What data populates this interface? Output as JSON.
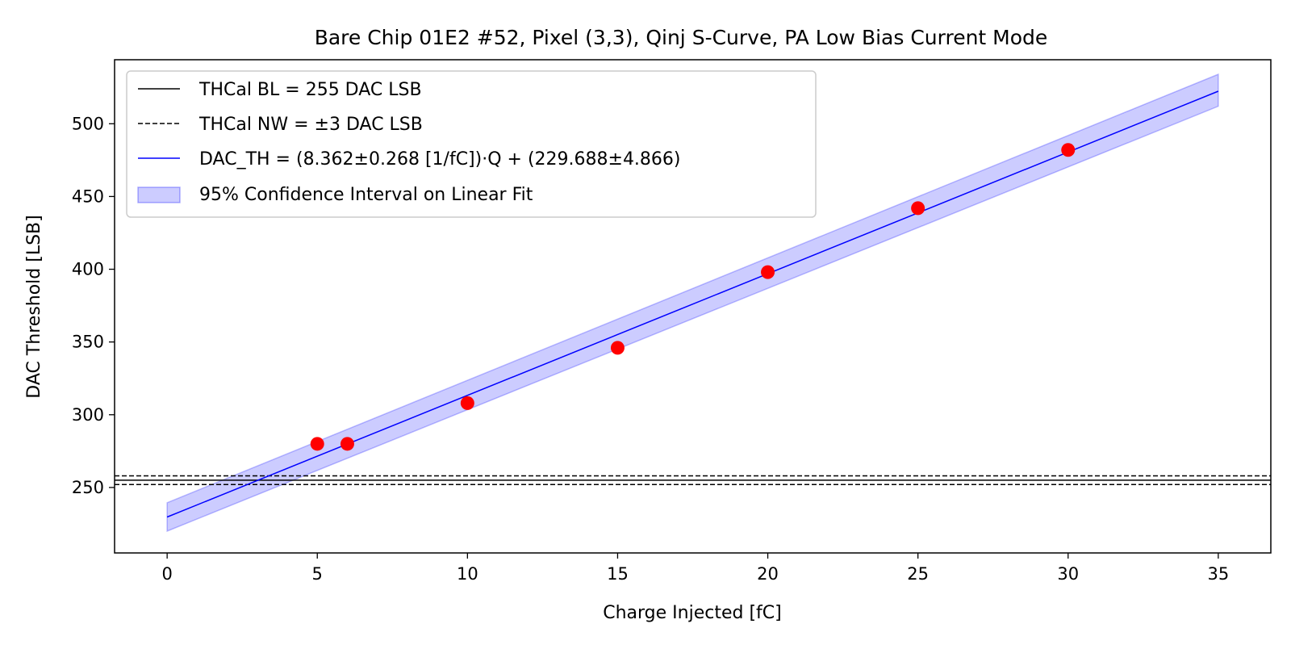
{
  "chart_data": {
    "type": "scatter",
    "title": "Bare Chip 01E2 #52, Pixel (3,3), Qinj S-Curve, PA Low Bias Current Mode",
    "xlabel": "Charge Injected [fC]",
    "ylabel": "DAC Threshold [LSB]",
    "xlim": [
      -1.75,
      36.75
    ],
    "ylim": [
      205,
      544
    ],
    "xticks": [
      0,
      5,
      10,
      15,
      20,
      25,
      30,
      35
    ],
    "yticks": [
      250,
      300,
      350,
      400,
      450,
      500
    ],
    "grid": false,
    "legend_position": "upper-left",
    "colors": {
      "points": "#ff0000",
      "fit": "#0000ff",
      "band_fill": "#0000ff",
      "baseline": "#000000"
    },
    "points": [
      {
        "x": 5,
        "y": 280
      },
      {
        "x": 6,
        "y": 280
      },
      {
        "x": 10,
        "y": 308
      },
      {
        "x": 15,
        "y": 346
      },
      {
        "x": 20,
        "y": 398
      },
      {
        "x": 25,
        "y": 442
      },
      {
        "x": 30,
        "y": 482
      }
    ],
    "fit": {
      "slope": 8.362,
      "intercept": 229.688,
      "x_range": [
        0,
        35
      ]
    },
    "confidence_band": {
      "x": [
        0,
        35
      ],
      "lower": [
        220,
        512
      ],
      "upper": [
        239.5,
        534
      ]
    },
    "baseline": {
      "value": 255
    },
    "noise_width_lines": [
      252,
      258
    ],
    "legend": [
      {
        "label": "THCal BL = 255 DAC LSB",
        "style": "solid-black"
      },
      {
        "label": "THCal NW = ±3 DAC LSB",
        "style": "dashed-black"
      },
      {
        "label": "DAC_TH = (8.362±0.268 [1/fC])·Q + (229.688±4.866)",
        "style": "solid-blue"
      },
      {
        "label": "95% Confidence Interval on Linear Fit",
        "style": "band-blue"
      }
    ]
  }
}
